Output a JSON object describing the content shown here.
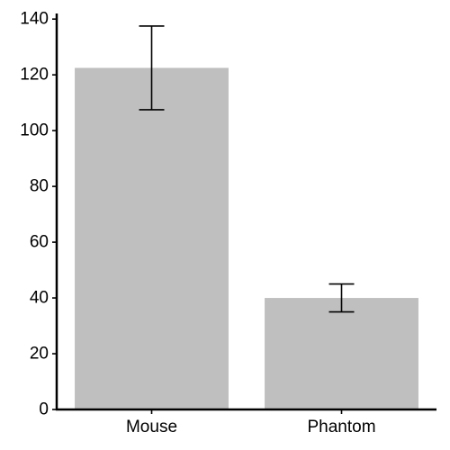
{
  "chart_data": {
    "type": "bar",
    "title": "",
    "xlabel": "",
    "ylabel": "",
    "categories": [
      "Mouse",
      "Phantom"
    ],
    "values": [
      122.5,
      40
    ],
    "errors": [
      15,
      5
    ],
    "ylim": [
      0,
      142
    ],
    "yticks": [
      0,
      20,
      40,
      60,
      80,
      100,
      120,
      140
    ],
    "grid": false,
    "colors": {
      "bar": "#bfbfbf",
      "error_bar": "#000000",
      "axis": "#000000"
    }
  }
}
